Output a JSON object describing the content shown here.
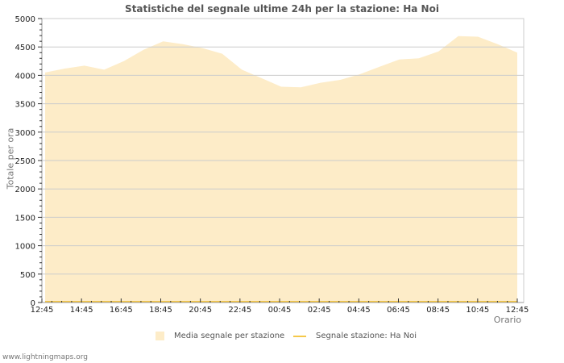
{
  "chart_data": {
    "type": "area",
    "title": "Statistiche del segnale ultime 24h per la stazione: Ha Noi",
    "xlabel": "Orario",
    "ylabel": "Totale per ora",
    "ylim": [
      0,
      5000
    ],
    "yticks": [
      0,
      500,
      1000,
      1500,
      2000,
      2500,
      3000,
      3500,
      4000,
      4500,
      5000
    ],
    "xtick_labels": [
      "12:45",
      "14:45",
      "16:45",
      "18:45",
      "20:45",
      "22:45",
      "00:45",
      "02:45",
      "04:45",
      "06:45",
      "08:45",
      "10:45",
      "12:45"
    ],
    "grid": true,
    "legend_position": "bottom",
    "x": [
      "12:45",
      "13:45",
      "14:45",
      "15:45",
      "16:45",
      "17:45",
      "18:45",
      "19:45",
      "20:45",
      "21:45",
      "22:45",
      "23:45",
      "00:45",
      "01:45",
      "02:45",
      "03:45",
      "04:45",
      "05:45",
      "06:45",
      "07:45",
      "08:45",
      "09:45",
      "10:45",
      "11:45",
      "12:45"
    ],
    "series": [
      {
        "name": "Media segnale per stazione",
        "style": "area",
        "color": "#fdecc8",
        "values": [
          4050,
          4120,
          4170,
          4100,
          4250,
          4450,
          4600,
          4550,
          4480,
          4380,
          4100,
          3950,
          3800,
          3790,
          3870,
          3920,
          4020,
          4150,
          4280,
          4300,
          4420,
          4690,
          4680,
          4550,
          4400
        ]
      },
      {
        "name": "Segnale stazione: Ha Noi",
        "style": "line",
        "color": "#f5c84a",
        "values": [
          0,
          0,
          0,
          0,
          0,
          0,
          0,
          0,
          0,
          0,
          0,
          0,
          0,
          0,
          0,
          0,
          0,
          0,
          0,
          0,
          0,
          0,
          0,
          0,
          0
        ]
      }
    ]
  },
  "legend": {
    "items": [
      {
        "label": "Media segnale per stazione"
      },
      {
        "label": "Segnale stazione: Ha Noi"
      }
    ]
  },
  "footer": {
    "credit": "www.lightningmaps.org"
  }
}
